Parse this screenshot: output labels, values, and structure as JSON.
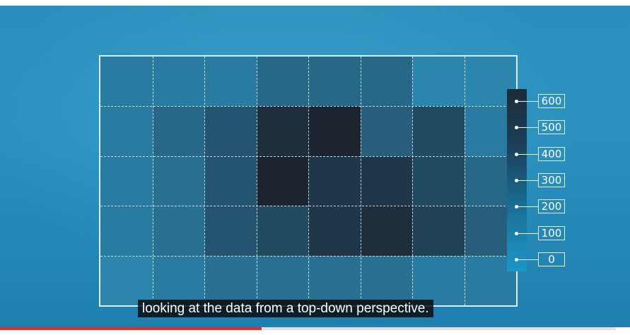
{
  "video": {
    "subtitle": "looking at the data from a top-down perspective.",
    "progress_fraction": 0.425,
    "colors": {
      "progress": "#e52d27",
      "background": "#2a91bf",
      "grid_line": "#d9eef8"
    }
  },
  "chart_data": {
    "type": "heatmap",
    "rows": 5,
    "cols": 8,
    "values": [
      [
        150,
        150,
        150,
        250,
        250,
        250,
        100,
        100
      ],
      [
        150,
        250,
        350,
        550,
        600,
        300,
        400,
        150
      ],
      [
        150,
        200,
        350,
        600,
        500,
        500,
        400,
        250
      ],
      [
        150,
        200,
        350,
        400,
        500,
        550,
        450,
        300
      ],
      [
        100,
        150,
        200,
        200,
        200,
        200,
        150,
        150
      ]
    ],
    "colorbar": {
      "ticks": [
        "600",
        "500",
        "400",
        "300",
        "200",
        "100",
        "0"
      ],
      "min": 0,
      "max": 600
    },
    "grid": true
  }
}
